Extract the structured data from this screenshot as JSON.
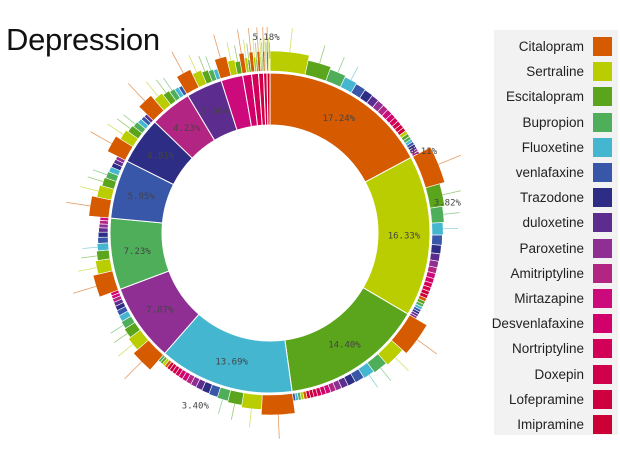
{
  "title": "Depression",
  "colors": {
    "Citalopram": "#d55a00",
    "Sertraline": "#bacd00",
    "Escitalopram": "#5aa51c",
    "Bupropion": "#4fae5a",
    "Fluoxetine": "#45b6d0",
    "venlafaxine": "#3857a8",
    "Trazodone": "#2e2d85",
    "duloxetine": "#5c2d8e",
    "Paroxetine": "#8f2f94",
    "Amitriptyline": "#b22583",
    "Mirtazapine": "#cc0a7c",
    "Desvenlafaxine": "#d2006a",
    "Nortriptyline": "#d30058",
    "Doxepin": "#d1004a",
    "Lofepramine": "#cf0040",
    "Imipramine": "#cd0036"
  },
  "legend": [
    "Citalopram",
    "Sertraline",
    "Escitalopram",
    "Bupropion",
    "Fluoxetine",
    "venlafaxine",
    "Trazodone",
    "duloxetine",
    "Paroxetine",
    "Amitriptyline",
    "Mirtazapine",
    "Desvenlafaxine",
    "Nortriptyline",
    "Doxepin",
    "Lofepramine",
    "Imipramine"
  ],
  "chart_data": {
    "type": "sunburst",
    "title": "Depression",
    "inner_ring": [
      {
        "name": "Citalopram",
        "value": 17.24,
        "label": "17.24%"
      },
      {
        "name": "Sertraline",
        "value": 16.33,
        "label": "16.33%"
      },
      {
        "name": "Escitalopram",
        "value": 14.4,
        "label": "14.40%"
      },
      {
        "name": "Fluoxetine",
        "value": 13.69,
        "label": "13.69%"
      },
      {
        "name": "Paroxetine",
        "value": 7.87,
        "label": "7.87%"
      },
      {
        "name": "Bupropion",
        "value": 7.23,
        "label": "7.23%"
      },
      {
        "name": "venlafaxine",
        "value": 5.95,
        "label": "5.95%"
      },
      {
        "name": "Trazodone",
        "value": 4.81,
        "label": "4.81%"
      },
      {
        "name": "Amitriptyline",
        "value": 4.23,
        "label": "4.23%"
      },
      {
        "name": "duloxetine",
        "value": 3.66,
        "label": "3.66%"
      },
      {
        "name": "Mirtazapine",
        "value": 2.2,
        "label": ""
      },
      {
        "name": "Desvenlafaxine",
        "value": 0.9,
        "label": ""
      },
      {
        "name": "Nortriptyline",
        "value": 0.7,
        "label": ""
      },
      {
        "name": "Doxepin",
        "value": 0.5,
        "label": ""
      },
      {
        "name": "Lofepramine",
        "value": 0.35,
        "label": ""
      },
      {
        "name": "Imipramine",
        "value": 0.3,
        "label": ""
      }
    ],
    "outer_labels": [
      {
        "text": "5.18%",
        "near": "Citalopram start"
      },
      {
        "text": "4.11%",
        "near": "Citalopram end"
      },
      {
        "text": "3.82%",
        "near": "Sertraline"
      },
      {
        "text": "3.40%",
        "near": "Fluoxetine end"
      }
    ]
  }
}
